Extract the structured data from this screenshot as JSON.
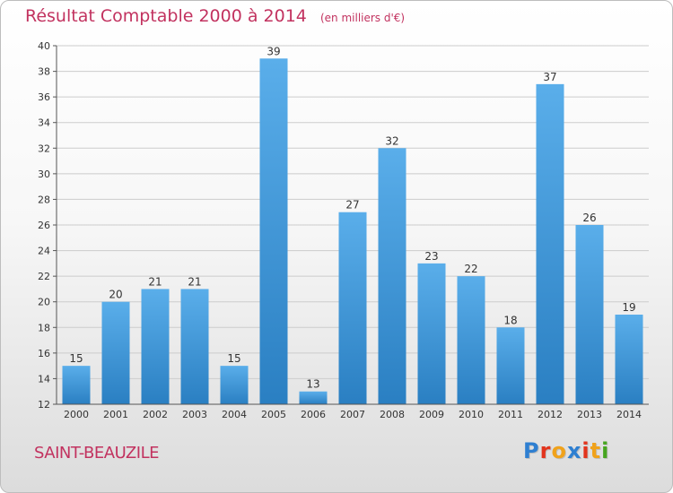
{
  "header": {
    "title": "Résultat Comptable 2000 à 2014",
    "subtitle": "(en milliers d'€)"
  },
  "footer": {
    "commune": "SAINT-BEAUZILE",
    "logo_text": "Proxiti",
    "logo_colors": [
      "#2e7fd1",
      "#e2341d",
      "#f0a21b",
      "#2e7fd1",
      "#e2341d",
      "#f0a21b",
      "#46a51f"
    ]
  },
  "colors": {
    "bar_light": "#5aaeea",
    "bar_dark": "#2a7fc2",
    "grid": "#cccccc",
    "axis": "#555555",
    "title": "#c2325f"
  },
  "chart_data": {
    "type": "bar",
    "categories": [
      "2000",
      "2001",
      "2002",
      "2003",
      "2004",
      "2005",
      "2006",
      "2007",
      "2008",
      "2009",
      "2010",
      "2011",
      "2012",
      "2013",
      "2014"
    ],
    "values": [
      15,
      20,
      21,
      21,
      15,
      39,
      13,
      27,
      32,
      23,
      22,
      18,
      37,
      26,
      19
    ],
    "ylim": [
      12,
      40
    ],
    "yticks": [
      12,
      14,
      16,
      18,
      20,
      22,
      24,
      26,
      28,
      30,
      32,
      34,
      36,
      38,
      40
    ],
    "grid": true,
    "data_labels": true
  }
}
